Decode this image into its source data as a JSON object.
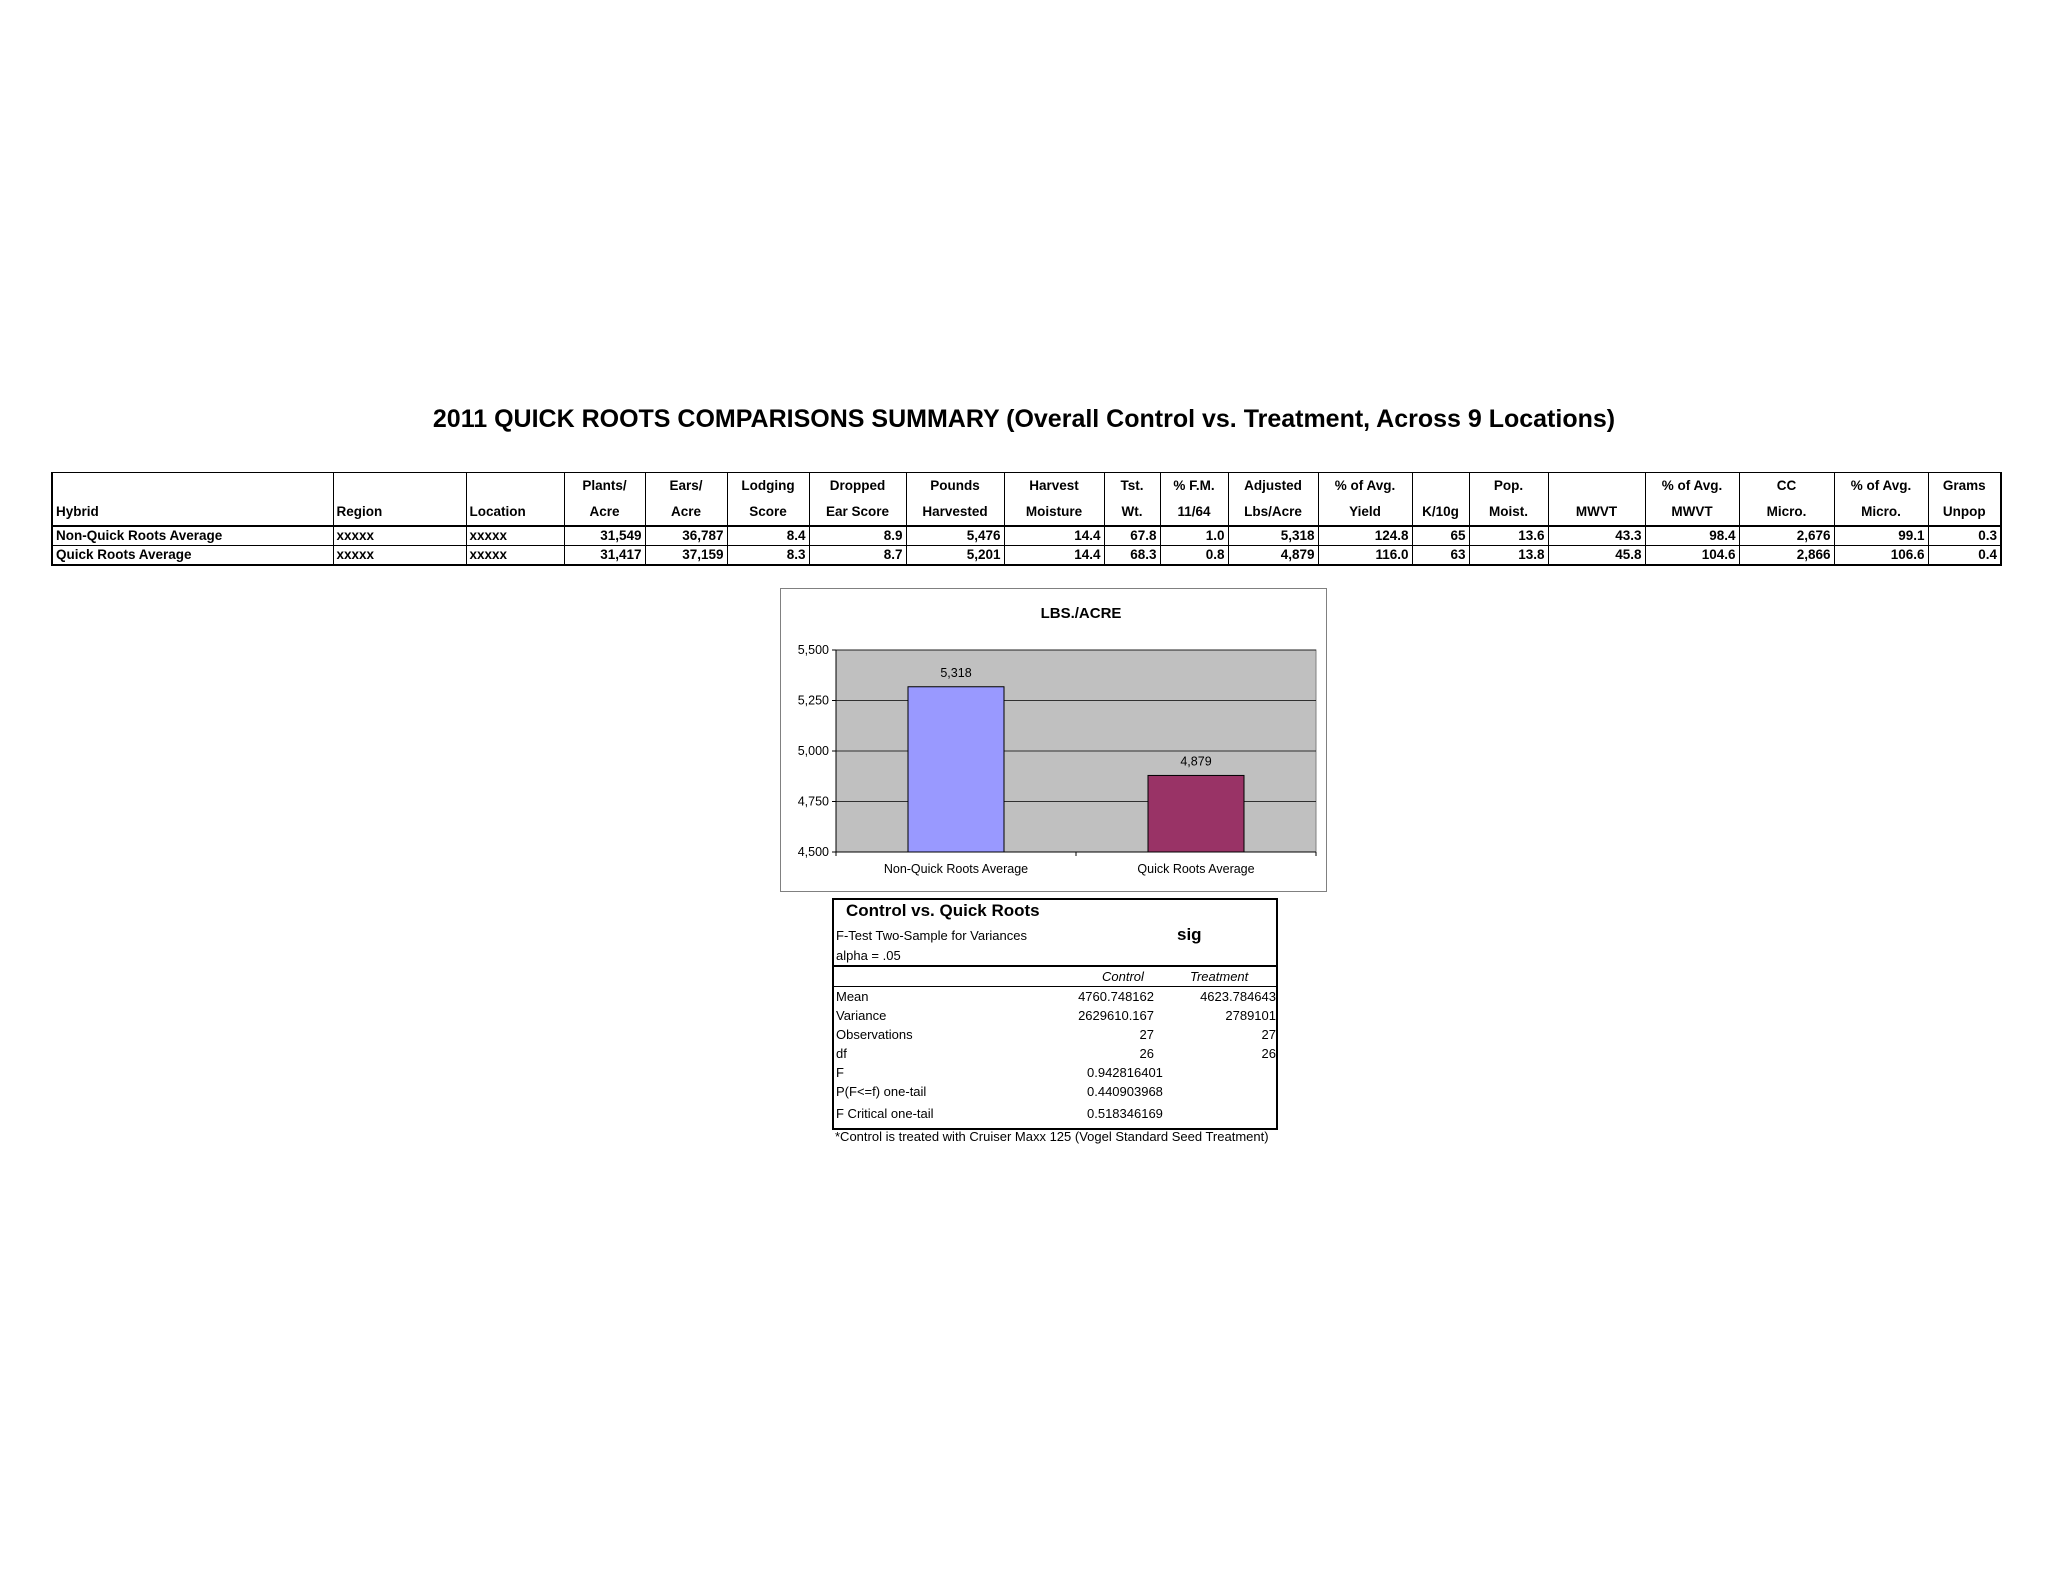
{
  "title": "2011 QUICK ROOTS COMPARISONS SUMMARY (Overall Control vs. Treatment, Across 9 Locations)",
  "summary": {
    "header_top": [
      "",
      "",
      "",
      "Plants/",
      "Ears/",
      "Lodging",
      "Dropped",
      "Pounds",
      "Harvest",
      "Tst.",
      "% F.M.",
      "Adjusted",
      "% of Avg.",
      "",
      "Pop.",
      "",
      "% of Avg.",
      "CC",
      "% of Avg.",
      "Grams"
    ],
    "header_bottom": [
      "Hybrid",
      "Region",
      "Location",
      "Acre",
      "Acre",
      "Score",
      "Ear Score",
      "Harvested",
      "Moisture",
      "Wt.",
      "11/64",
      "Lbs/Acre",
      "Yield",
      "K/10g",
      "Moist.",
      "MWVT",
      "MWVT",
      "Micro.",
      "Micro.",
      "Unpop"
    ],
    "rows": [
      [
        "Non-Quick Roots Average",
        "xxxxx",
        "xxxxx",
        "31,549",
        "36,787",
        "8.4",
        "8.9",
        "5,476",
        "14.4",
        "67.8",
        "1.0",
        "5,318",
        "124.8",
        "65",
        "13.6",
        "43.3",
        "98.4",
        "2,676",
        "99.1",
        "0.3"
      ],
      [
        "Quick Roots Average",
        "xxxxx",
        "xxxxx",
        "31,417",
        "37,159",
        "8.3",
        "8.7",
        "5,201",
        "14.4",
        "68.3",
        "0.8",
        "4,879",
        "116.0",
        "63",
        "13.8",
        "45.8",
        "104.6",
        "2,866",
        "106.6",
        "0.4"
      ]
    ]
  },
  "chart_data": {
    "type": "bar",
    "title": "LBS./ACRE",
    "categories": [
      "Non-Quick Roots Average",
      "Quick Roots Average"
    ],
    "values": [
      5318,
      4879
    ],
    "value_labels": [
      "5,318",
      "4,879"
    ],
    "ylim": [
      4500,
      5500
    ],
    "yticks": [
      4500,
      4750,
      5000,
      5250,
      5500
    ],
    "ytick_labels": [
      "4,500",
      "4,750",
      "5,000",
      "5,250",
      "5,500"
    ],
    "bar_colors": [
      "#9999ff",
      "#993366"
    ],
    "plot_background": "#c0c0c0",
    "grid": true,
    "xlabel": "",
    "ylabel": ""
  },
  "stats": {
    "title": "Control vs. Quick Roots",
    "test_name": "F-Test Two-Sample for Variances",
    "alpha": "alpha = .05",
    "sig": "sig",
    "col_control": "Control",
    "col_treatment": "Treatment",
    "rows": [
      {
        "label": "Mean",
        "control": "4760.748162",
        "treatment": "4623.784643"
      },
      {
        "label": "Variance",
        "control": "2629610.167",
        "treatment": "2789101"
      },
      {
        "label": "Observations",
        "control": "27",
        "treatment": "27"
      },
      {
        "label": "df",
        "control": "26",
        "treatment": "26"
      },
      {
        "label": "F",
        "control": "0.942816401",
        "treatment": ""
      },
      {
        "label": "P(F<=f) one-tail",
        "control": "0.440903968",
        "treatment": ""
      },
      {
        "label": "F Critical one-tail",
        "control": "0.518346169",
        "treatment": ""
      }
    ]
  },
  "note": "*Control is treated with Cruiser Maxx 125 (Vogel Standard Seed Treatment)"
}
